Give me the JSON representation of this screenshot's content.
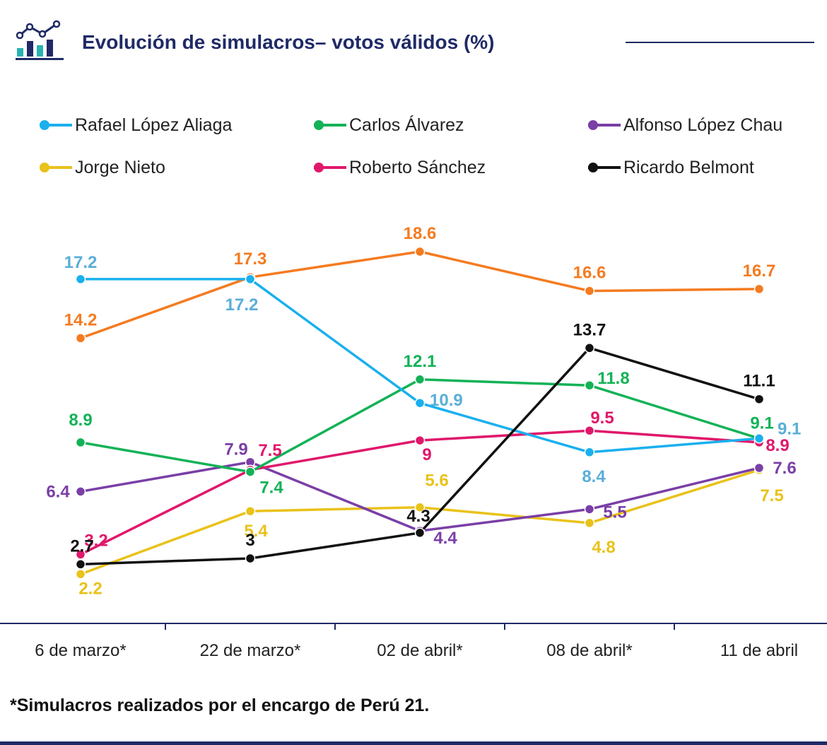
{
  "header": {
    "title": "Evolución de simulacros– votos válidos (%)",
    "icon": "bar-line-chart-icon"
  },
  "footnote": "*Simulacros realizados por el encargo de Perú 21.",
  "chart_data": {
    "type": "line",
    "title": "Evolución de simulacros– votos válidos (%)",
    "xlabel": "",
    "ylabel": "",
    "categories": [
      "6 de marzo*",
      "22 de marzo*",
      "02 de abril*",
      "08 de abril*",
      "11 de abril"
    ],
    "grid": false,
    "legend_position": "top",
    "series": [
      {
        "name": "Rafael López Aliaga",
        "color": "#1ab0ee",
        "label_color": "#5aaed8",
        "values": [
          17.2,
          17.2,
          10.9,
          8.4,
          9.1
        ]
      },
      {
        "name": "Carlos Álvarez",
        "color": "#13b257",
        "label_color": "#13b257",
        "values": [
          8.9,
          7.4,
          12.1,
          11.8,
          9.1
        ]
      },
      {
        "name": "Alfonso López Chau",
        "color": "#7a3fa6",
        "label_color": "#7a3fa6",
        "values": [
          6.4,
          7.9,
          4.4,
          5.5,
          7.6
        ]
      },
      {
        "name": "Jorge Nieto",
        "color": "#e9c21a",
        "label_color": "#e9c21a",
        "values": [
          2.2,
          5.4,
          5.6,
          4.8,
          7.5
        ]
      },
      {
        "name": "Roberto Sánchez",
        "color": "#e0186b",
        "label_color": "#e0186b",
        "values": [
          3.2,
          7.5,
          9,
          9.5,
          8.9
        ]
      },
      {
        "name": "Ricardo Belmont",
        "color": "#111111",
        "label_color": "#111111",
        "values": [
          2.7,
          3,
          4.3,
          13.7,
          11.1
        ]
      },
      {
        "name": "",
        "color": "#f47b20",
        "label_color": "#f47b20",
        "values": [
          14.2,
          17.3,
          18.6,
          16.6,
          16.7
        ]
      }
    ]
  }
}
